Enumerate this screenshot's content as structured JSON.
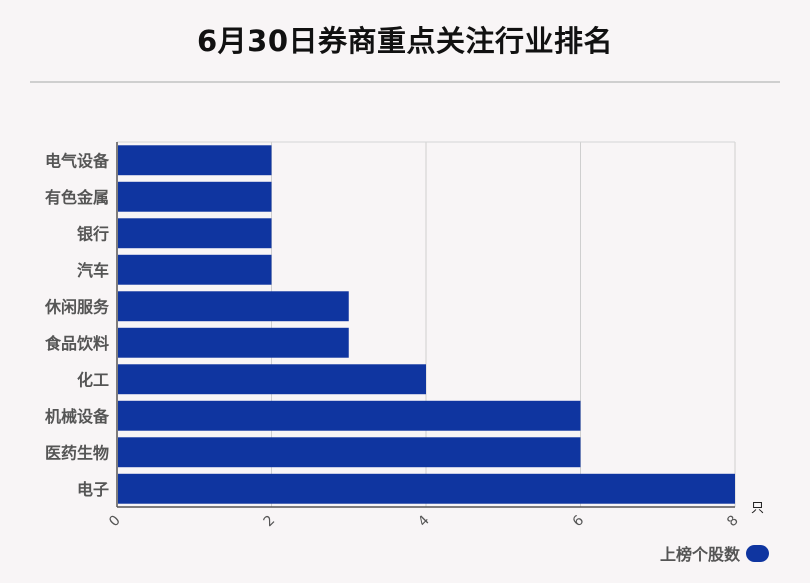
{
  "title": "6月30日券商重点关注行业排名",
  "chart_data": {
    "type": "bar",
    "orientation": "horizontal",
    "categories": [
      "电气设备",
      "有色金属",
      "银行",
      "汽车",
      "休闲服务",
      "食品饮料",
      "化工",
      "机械设备",
      "医药生物",
      "电子"
    ],
    "series": [
      {
        "name": "上榜个股数",
        "values": [
          2,
          2,
          2,
          2,
          3,
          3,
          4,
          6,
          6,
          8
        ]
      }
    ],
    "xlim": [
      0,
      8
    ],
    "xticks": [
      0,
      2,
      4,
      6,
      8
    ],
    "unit": "只",
    "grid": true,
    "legend_position": "bottom-right",
    "bar_color": "#0f35a0"
  }
}
